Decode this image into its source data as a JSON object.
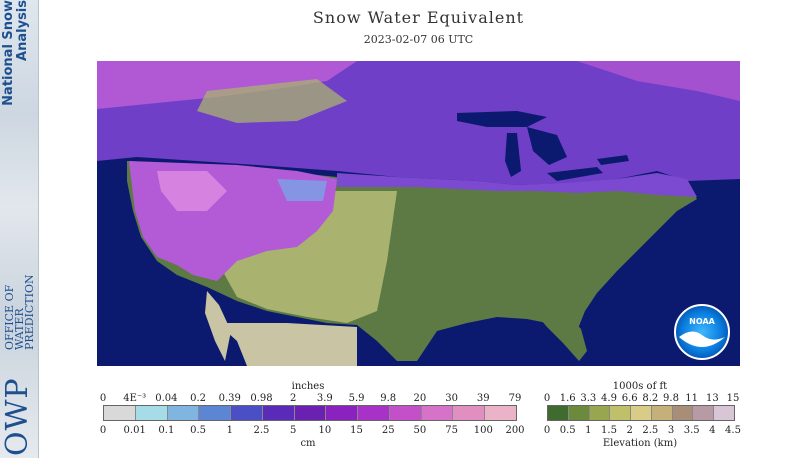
{
  "sidebar": {
    "title_line1": "National Snow",
    "title_line2": "Analysis",
    "office_line1": "OFFICE OF",
    "office_line2": "WATER",
    "office_line3": "PREDICTION",
    "logo_text": "OWP"
  },
  "header": {
    "title": "Snow Water Equivalent",
    "timestamp": "2023-02-07 06 UTC"
  },
  "map": {
    "logo_text": "NOAA",
    "colors": {
      "ocean": "#0b1a6e",
      "canada": "#6f3fc8",
      "lowland": "#5d7a45",
      "plains": "#a9b36f",
      "mountain": "#b35ad6",
      "mexico": "#c9c4a4"
    }
  },
  "legend_swe": {
    "top_unit": "inches",
    "bottom_unit": "cm",
    "top_ticks": [
      "0",
      "4E⁻³",
      "0.04",
      "0.2",
      "0.39",
      "0.98",
      "2",
      "3.9",
      "5.9",
      "9.8",
      "20",
      "30",
      "39",
      "79"
    ],
    "bottom_ticks": [
      "0",
      "0.01",
      "0.1",
      "0.5",
      "1",
      "2.5",
      "5",
      "10",
      "15",
      "25",
      "50",
      "75",
      "100",
      "200"
    ],
    "colors": [
      "#d9d9d9",
      "#a6dce8",
      "#7fb5e0",
      "#5c86d4",
      "#4b4fc6",
      "#5a2ab8",
      "#6a20b0",
      "#8a22c0",
      "#a832c8",
      "#c350c8",
      "#d672c8",
      "#e08fc0",
      "#ebb3c8"
    ]
  },
  "legend_elev": {
    "top_unit": "1000s of ft",
    "bottom_unit": "Elevation (km)",
    "top_ticks": [
      "0",
      "1.6",
      "3.3",
      "4.9",
      "6.6",
      "8.2",
      "9.8",
      "11",
      "13",
      "15"
    ],
    "bottom_ticks": [
      "0",
      "0.5",
      "1",
      "1.5",
      "2",
      "2.5",
      "3",
      "3.5",
      "4",
      "4.5"
    ],
    "colors": [
      "#3f6b2e",
      "#6c8a3c",
      "#98a650",
      "#c0c06a",
      "#d8cc86",
      "#c6b07a",
      "#a88e76",
      "#b89aa4",
      "#d8c6d6"
    ]
  }
}
